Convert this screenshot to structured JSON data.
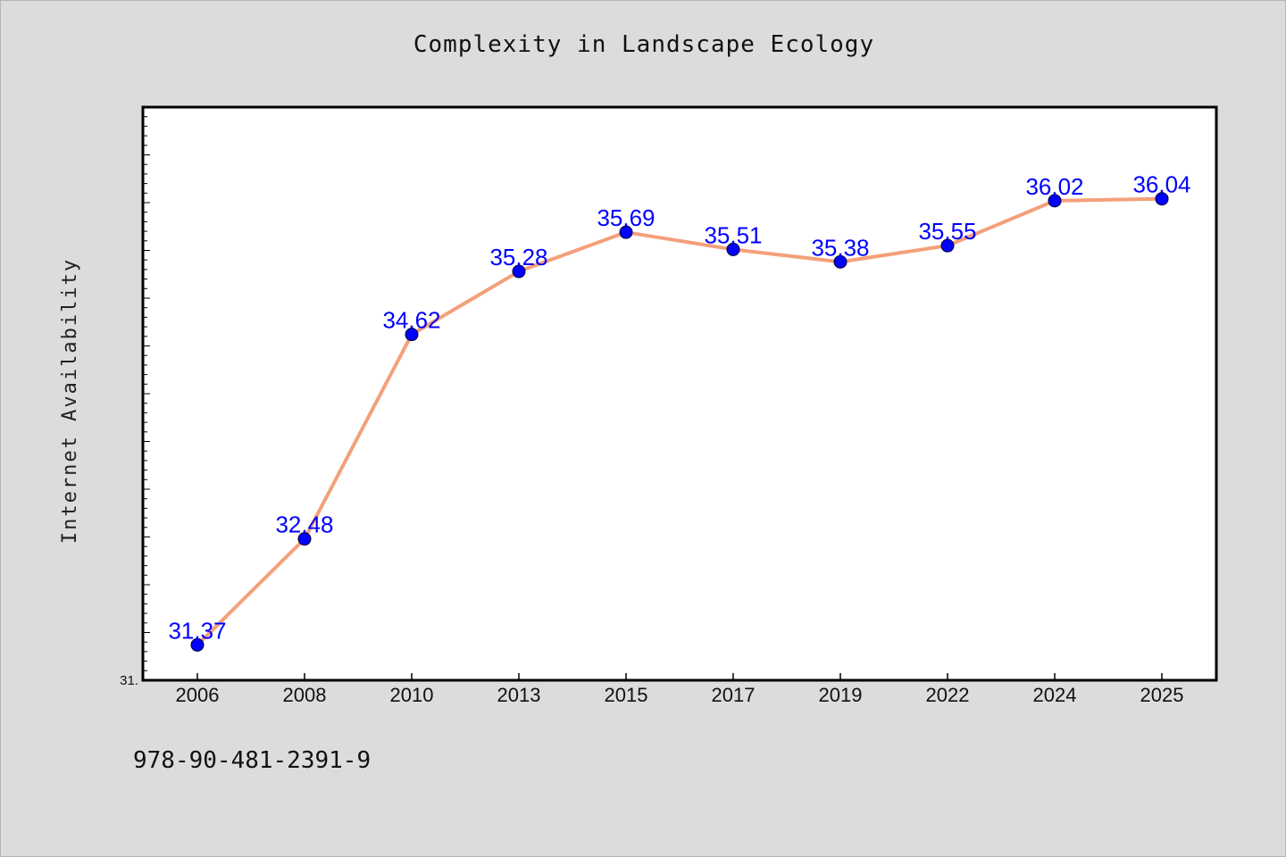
{
  "chart_data": {
    "type": "line",
    "title": "Complexity in Landscape Ecology",
    "ylabel": "Internet Availability",
    "xlabel": "",
    "categories": [
      "2006",
      "2008",
      "2010",
      "2013",
      "2015",
      "2017",
      "2019",
      "2022",
      "2024",
      "2025"
    ],
    "series": [
      {
        "values": [
          31.37,
          32.48,
          34.62,
          35.28,
          35.69,
          35.51,
          35.38,
          35.55,
          36.02,
          36.04
        ]
      }
    ],
    "data_labels": [
      "31.37",
      "32.48",
      "34.62",
      "35.28",
      "35.69",
      "35.51",
      "35.38",
      "35.55",
      "36.02",
      "36.04"
    ],
    "ylim": [
      31.0,
      37.0
    ],
    "y_tick_label": "31.",
    "line_color": "#f4a07a",
    "marker_color": "#0000ff",
    "label_color": "#0000ff",
    "grid": false,
    "legend": "none"
  },
  "footer": {
    "code": "978-90-481-2391-9"
  }
}
